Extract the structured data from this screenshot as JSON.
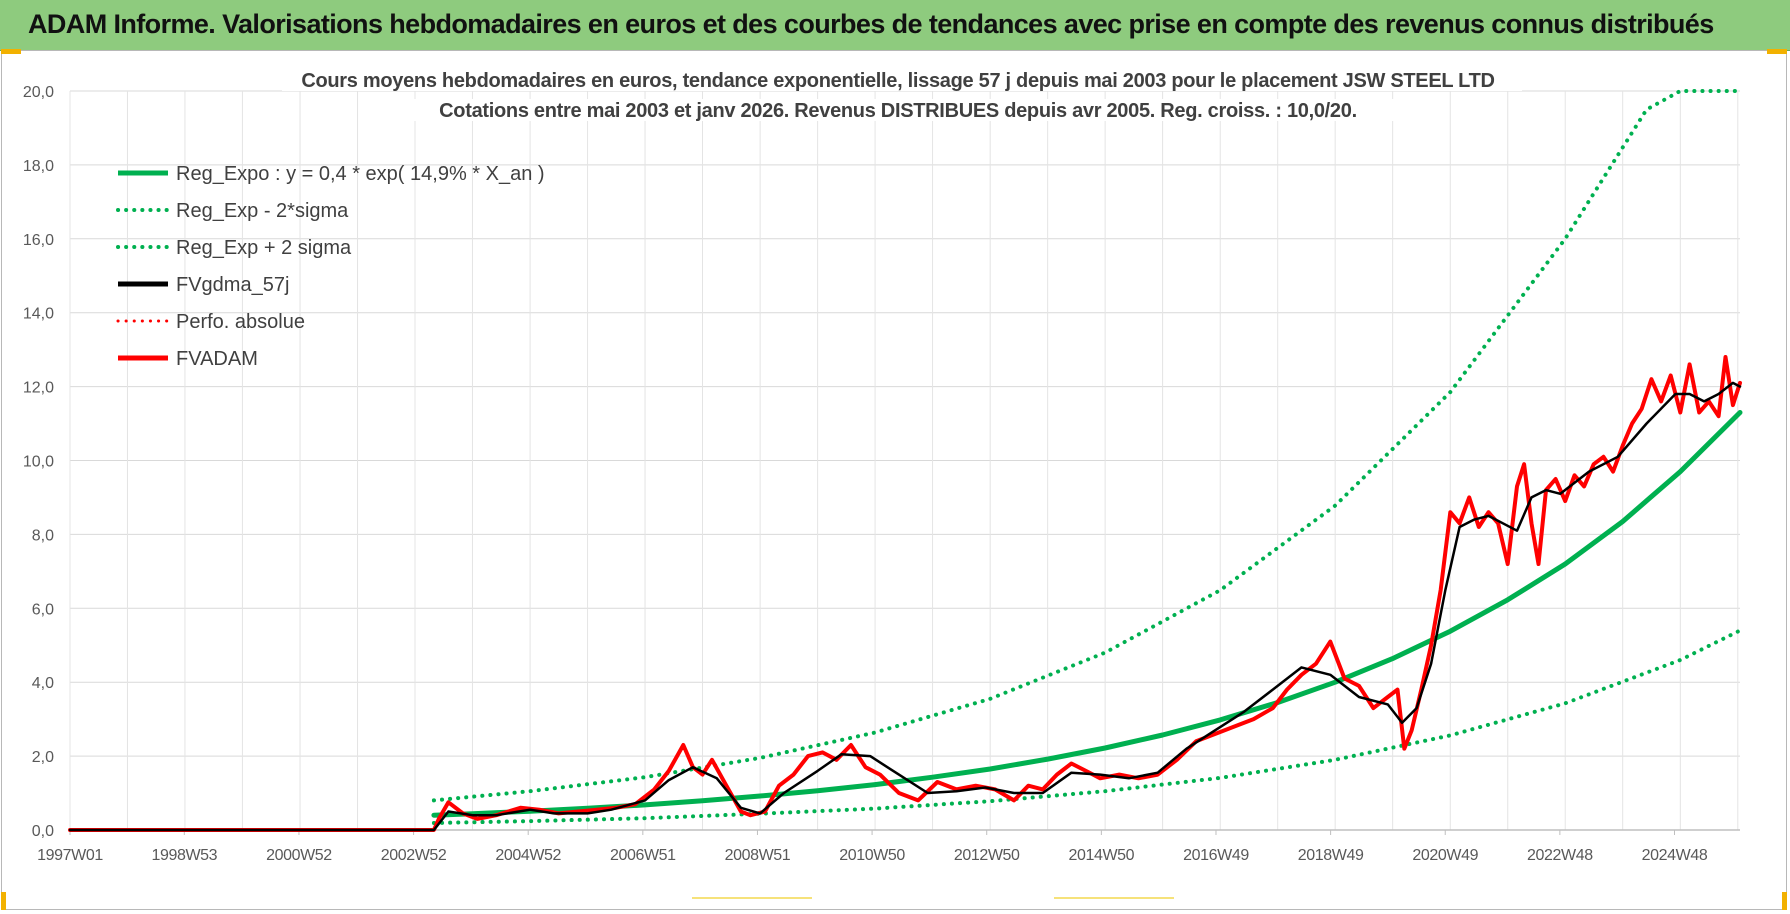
{
  "banner": {
    "title": "ADAM Informe. Valorisations hebdomadaires en euros et des courbes de tendances avec prise en compte des revenus connus distribués"
  },
  "colors": {
    "banner_bg": "#8ecb7e",
    "trend": "#00b050",
    "fvgdma": "#000000",
    "fvadam": "#ff0000",
    "grid": "#d9d9d9"
  },
  "chart_data": {
    "type": "line",
    "title": "Cours moyens hebdomadaires en euros, tendance exponentielle, lissage 57 j depuis mai 2003 pour le placement JSW STEEL LTD",
    "subtitle": "Cotations entre mai 2003 et janv 2026. Revenus DISTRIBUES depuis avr 2005. Reg. croiss. : 10,0/20.",
    "xlabel": "",
    "ylabel": "",
    "ylim": [
      0,
      20
    ],
    "y_ticks": [
      "0,0",
      "2,0",
      "4,0",
      "6,0",
      "8,0",
      "10,0",
      "12,0",
      "14,0",
      "16,0",
      "18,0",
      "20,0"
    ],
    "x_range": [
      "1997-01-01",
      "2026-01-15"
    ],
    "x_ticks": [
      {
        "label": "1997W01",
        "date": "1997-01-01"
      },
      {
        "label": "1998W53",
        "date": "1998-12-28"
      },
      {
        "label": "2000W52",
        "date": "2000-12-25"
      },
      {
        "label": "2002W52",
        "date": "2002-12-23"
      },
      {
        "label": "2004W52",
        "date": "2004-12-20"
      },
      {
        "label": "2006W51",
        "date": "2006-12-18"
      },
      {
        "label": "2008W51",
        "date": "2008-12-15"
      },
      {
        "label": "2010W50",
        "date": "2010-12-13"
      },
      {
        "label": "2012W50",
        "date": "2012-12-10"
      },
      {
        "label": "2014W50",
        "date": "2014-12-08"
      },
      {
        "label": "2016W49",
        "date": "2016-12-05"
      },
      {
        "label": "2018W49",
        "date": "2018-12-03"
      },
      {
        "label": "2020W49",
        "date": "2020-11-30"
      },
      {
        "label": "2022W48",
        "date": "2022-11-28"
      },
      {
        "label": "2024W48",
        "date": "2024-11-25"
      }
    ],
    "grid": true,
    "legend_position": "top-left",
    "series": [
      {
        "name": "Reg_Expo : y = 0,4 * exp( 14,9% *  X_an )",
        "style": "solid",
        "color": "#00b050",
        "x": [
          "2003-05-01",
          "2004-01-01",
          "2005-01-01",
          "2006-01-01",
          "2007-01-01",
          "2008-01-01",
          "2009-01-01",
          "2010-01-01",
          "2011-01-01",
          "2012-01-01",
          "2013-01-01",
          "2014-01-01",
          "2015-01-01",
          "2016-01-01",
          "2017-01-01",
          "2018-01-01",
          "2019-01-01",
          "2020-01-01",
          "2021-01-01",
          "2022-01-01",
          "2023-01-01",
          "2024-01-01",
          "2025-01-01",
          "2026-01-15"
        ],
        "y": [
          0.4,
          0.44,
          0.51,
          0.59,
          0.68,
          0.79,
          0.92,
          1.06,
          1.23,
          1.43,
          1.65,
          1.92,
          2.22,
          2.57,
          2.98,
          3.45,
          4.0,
          4.64,
          5.38,
          6.23,
          7.2,
          8.35,
          9.7,
          11.3
        ]
      },
      {
        "name": "Reg_Exp - 2*sigma",
        "style": "dotted",
        "color": "#00b050",
        "x": [
          "2003-05-01",
          "2005-01-01",
          "2007-01-01",
          "2009-01-01",
          "2011-01-01",
          "2013-01-01",
          "2015-01-01",
          "2017-01-01",
          "2019-01-01",
          "2021-01-01",
          "2023-01-01",
          "2025-01-01",
          "2026-01-15"
        ],
        "y": [
          0.19,
          0.24,
          0.32,
          0.44,
          0.58,
          0.78,
          1.05,
          1.41,
          1.9,
          2.56,
          3.43,
          4.6,
          5.4
        ]
      },
      {
        "name": "Reg_Exp + 2 sigma",
        "style": "dotted",
        "color": "#00b050",
        "x": [
          "2003-05-01",
          "2005-01-01",
          "2007-01-01",
          "2009-01-01",
          "2011-01-01",
          "2013-01-01",
          "2015-01-01",
          "2017-01-01",
          "2019-01-01",
          "2021-01-01",
          "2023-01-01",
          "2024-06-01",
          "2025-01-01",
          "2026-01-15"
        ],
        "y": [
          0.8,
          1.05,
          1.43,
          1.95,
          2.64,
          3.55,
          4.8,
          6.49,
          8.78,
          11.85,
          16.0,
          19.5,
          20.0,
          20.0
        ]
      },
      {
        "name": "FVgdma_57j",
        "style": "solid",
        "color": "#000000",
        "x": [
          "1997-01-01",
          "2003-05-01",
          "2003-08-01",
          "2004-01-01",
          "2004-06-01",
          "2005-01-01",
          "2005-06-01",
          "2006-01-01",
          "2006-06-01",
          "2007-01-01",
          "2007-06-01",
          "2007-11-01",
          "2008-04-01",
          "2008-09-01",
          "2009-01-01",
          "2009-06-01",
          "2010-01-01",
          "2010-06-01",
          "2010-12-01",
          "2011-06-01",
          "2011-12-01",
          "2012-06-01",
          "2012-12-01",
          "2013-06-01",
          "2013-12-01",
          "2014-06-01",
          "2014-12-01",
          "2015-06-01",
          "2015-12-01",
          "2016-06-01",
          "2016-12-01",
          "2017-06-01",
          "2017-12-01",
          "2018-06-01",
          "2018-12-01",
          "2019-06-01",
          "2019-12-01",
          "2020-03-01",
          "2020-06-01",
          "2020-09-01",
          "2020-12-01",
          "2021-03-01",
          "2021-06-01",
          "2021-09-01",
          "2021-12-01",
          "2022-03-01",
          "2022-06-01",
          "2022-09-01",
          "2022-12-01",
          "2023-06-01",
          "2023-12-01",
          "2024-06-01",
          "2024-12-01",
          "2025-03-01",
          "2025-06-01",
          "2025-09-01",
          "2025-12-01",
          "2026-01-15"
        ],
        "y": [
          0.0,
          0.0,
          0.5,
          0.4,
          0.4,
          0.55,
          0.45,
          0.45,
          0.55,
          0.8,
          1.35,
          1.7,
          1.4,
          0.6,
          0.45,
          1.0,
          1.6,
          2.05,
          2.0,
          1.5,
          1.0,
          1.05,
          1.15,
          1.0,
          1.0,
          1.55,
          1.5,
          1.4,
          1.55,
          2.2,
          2.7,
          3.2,
          3.8,
          4.4,
          4.2,
          3.6,
          3.4,
          2.9,
          3.3,
          4.5,
          6.5,
          8.2,
          8.4,
          8.5,
          8.3,
          8.1,
          9.0,
          9.2,
          9.1,
          9.7,
          10.1,
          11.0,
          11.8,
          11.8,
          11.6,
          11.8,
          12.1,
          12.0
        ]
      },
      {
        "name": "Perfo. absolue",
        "style": "dotted",
        "color": "#ff0000",
        "x": [],
        "y": []
      },
      {
        "name": "FVADAM",
        "style": "solid",
        "color": "#ff0000",
        "x": [
          "1997-01-01",
          "2003-05-01",
          "2003-06-01",
          "2003-08-01",
          "2003-11-01",
          "2004-02-01",
          "2004-06-01",
          "2004-11-01",
          "2005-03-01",
          "2005-07-01",
          "2005-11-01",
          "2006-03-01",
          "2006-07-01",
          "2006-11-01",
          "2007-03-01",
          "2007-06-01",
          "2007-09-01",
          "2007-11-01",
          "2008-01-01",
          "2008-03-01",
          "2008-06-01",
          "2008-09-01",
          "2008-11-01",
          "2009-02-01",
          "2009-05-01",
          "2009-08-01",
          "2009-11-01",
          "2010-02-01",
          "2010-05-01",
          "2010-08-01",
          "2010-11-01",
          "2011-02-01",
          "2011-06-01",
          "2011-10-01",
          "2012-02-01",
          "2012-06-01",
          "2012-10-01",
          "2013-02-01",
          "2013-06-01",
          "2013-09-01",
          "2013-12-01",
          "2014-03-01",
          "2014-06-01",
          "2014-09-01",
          "2014-12-01",
          "2015-04-01",
          "2015-08-01",
          "2015-12-01",
          "2016-04-01",
          "2016-08-01",
          "2016-12-01",
          "2017-04-01",
          "2017-08-01",
          "2017-12-01",
          "2018-03-01",
          "2018-06-01",
          "2018-09-01",
          "2018-12-01",
          "2019-03-01",
          "2019-06-01",
          "2019-09-01",
          "2019-12-01",
          "2020-02-01",
          "2020-03-15",
          "2020-05-01",
          "2020-07-01",
          "2020-09-01",
          "2020-11-01",
          "2021-01-01",
          "2021-03-01",
          "2021-05-01",
          "2021-07-01",
          "2021-09-01",
          "2021-11-01",
          "2022-01-01",
          "2022-03-01",
          "2022-04-15",
          "2022-06-01",
          "2022-07-15",
          "2022-09-01",
          "2022-11-01",
          "2023-01-01",
          "2023-03-01",
          "2023-05-01",
          "2023-07-01",
          "2023-09-01",
          "2023-11-01",
          "2024-01-01",
          "2024-03-01",
          "2024-05-01",
          "2024-07-01",
          "2024-09-01",
          "2024-11-01",
          "2025-01-01",
          "2025-03-01",
          "2025-05-01",
          "2025-07-01",
          "2025-09-01",
          "2025-10-15",
          "2025-12-01",
          "2026-01-15"
        ],
        "y": [
          0.0,
          0.0,
          0.3,
          0.75,
          0.45,
          0.3,
          0.4,
          0.6,
          0.55,
          0.45,
          0.5,
          0.55,
          0.6,
          0.7,
          1.1,
          1.6,
          2.3,
          1.7,
          1.5,
          1.9,
          1.2,
          0.5,
          0.4,
          0.5,
          1.2,
          1.5,
          2.0,
          2.1,
          1.9,
          2.3,
          1.7,
          1.5,
          1.0,
          0.8,
          1.3,
          1.1,
          1.2,
          1.1,
          0.8,
          1.2,
          1.1,
          1.5,
          1.8,
          1.6,
          1.4,
          1.5,
          1.4,
          1.5,
          1.9,
          2.4,
          2.6,
          2.8,
          3.0,
          3.3,
          3.8,
          4.2,
          4.5,
          5.1,
          4.1,
          3.9,
          3.3,
          3.6,
          3.8,
          2.2,
          2.7,
          3.8,
          5.0,
          6.5,
          8.6,
          8.3,
          9.0,
          8.2,
          8.6,
          8.3,
          7.2,
          9.3,
          9.9,
          8.3,
          7.2,
          9.2,
          9.5,
          8.9,
          9.6,
          9.3,
          9.9,
          10.1,
          9.7,
          10.4,
          11.0,
          11.4,
          12.2,
          11.6,
          12.3,
          11.3,
          12.6,
          11.3,
          11.6,
          11.2,
          12.8,
          11.5,
          12.1
        ]
      }
    ]
  }
}
